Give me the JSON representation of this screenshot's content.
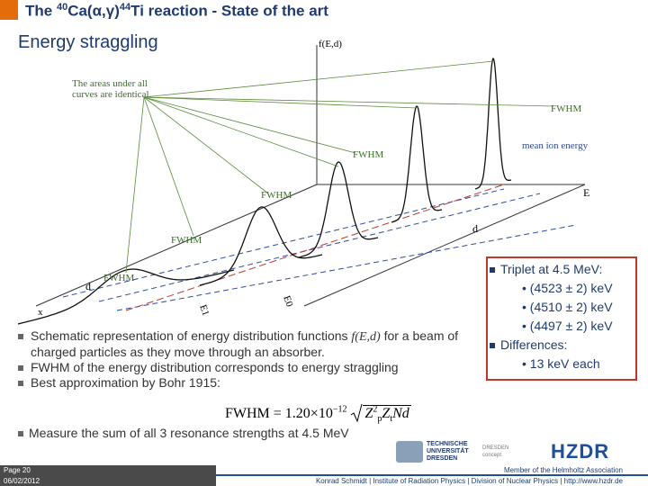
{
  "header": {
    "title_parts": [
      "The ",
      "40",
      "Ca(α,γ)",
      "44",
      "Ti reaction - State of the art"
    ]
  },
  "subtitle": "Energy straggling",
  "diagram": {
    "y_axis": "f(E,d)",
    "note": [
      "The areas under all",
      "curves are identical."
    ],
    "fwhm_labels": [
      "FWHM",
      "FWHM",
      "FWHM",
      "FWHM",
      "FWHM"
    ],
    "mean_ion_energy": "mean ion energy",
    "e_axis": "E",
    "d_labels": [
      "d",
      "d"
    ],
    "x_label": "x",
    "e1": "E1",
    "e0": "E0"
  },
  "left_box": {
    "bullets": [
      [
        "Schematic representation of energy distribution functions ",
        "f(E,d)",
        " for a beam of charged particles as they move through an absorber."
      ],
      [
        "FWHM of the energy distribution corresponds to energy straggling"
      ],
      [
        "Best approximation by Bohr 1915:"
      ]
    ]
  },
  "formula": {
    "lhs": "FWHM",
    "coef": "= 1.20×10",
    "exponent": "−12",
    "z1": "Z",
    "z1_sup": "2",
    "z1_sub": "p",
    "z2": "Z",
    "z2_sub": "t",
    "rest": "Nd"
  },
  "right_box": {
    "items": [
      {
        "text": "Triplet at 4.5 MeV:",
        "sub": [
          "(4523 ± 2) keV",
          "(4510 ± 2) keV",
          "(4497 ± 2) keV"
        ]
      },
      {
        "text": "Differences:",
        "sub": [
          "13 keV each"
        ]
      }
    ]
  },
  "bottom_bullet": "Measure the sum of all 3 resonance strengths at 4.5 MeV",
  "logos": {
    "tu": [
      "TECHNISCHE",
      "UNIVERSITÄT",
      "DRESDEN"
    ],
    "concept": [
      "DRESDEN",
      "concept"
    ],
    "hzdr": "HZDR"
  },
  "footer": {
    "page": "Page 20",
    "date": "06/02/2012",
    "member": "Member of the Helmholtz Association",
    "credit": "Konrad Schmidt | Institute of Radiation Physics | Division of Nuclear Physics | http://www.hzdr.de"
  }
}
